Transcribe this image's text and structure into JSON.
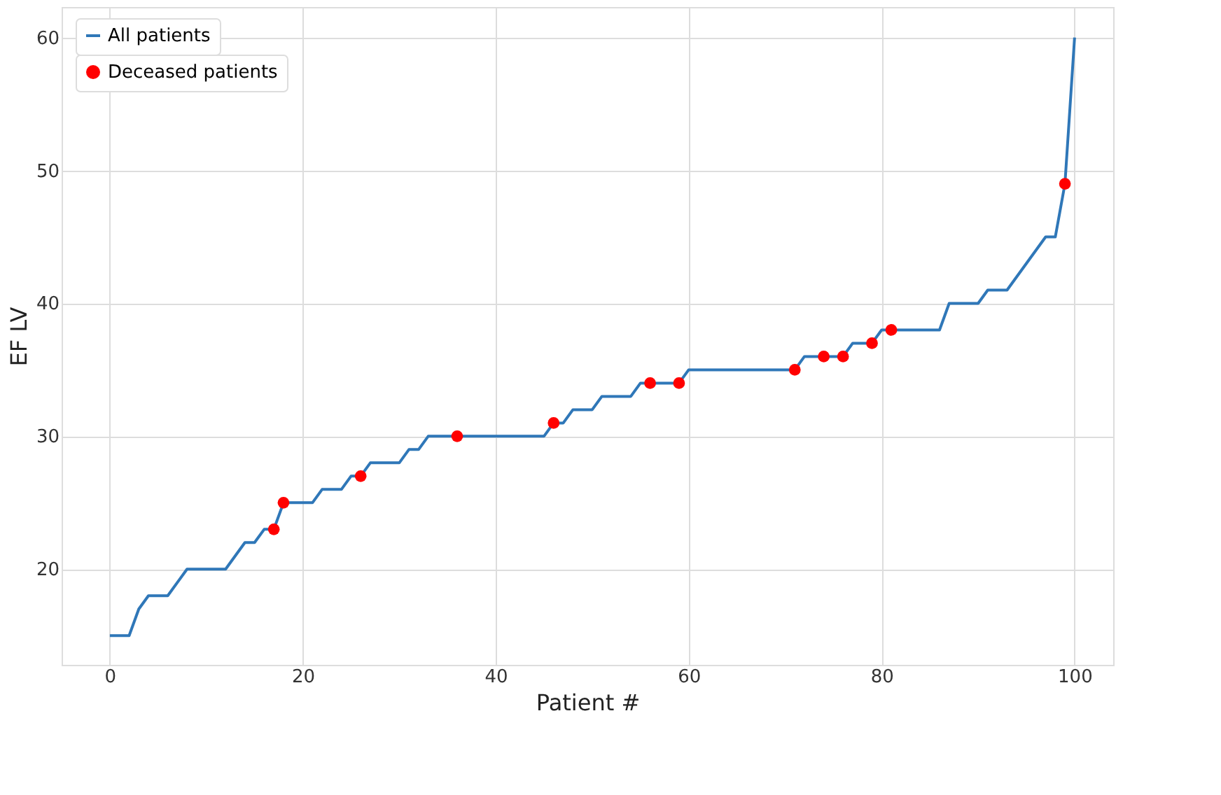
{
  "chart_data": {
    "type": "line",
    "xlabel": "Patient #",
    "ylabel": "EF LV",
    "xlim": [
      -5,
      104
    ],
    "ylim": [
      12.8,
      62.3
    ],
    "xticks": [
      0,
      20,
      40,
      60,
      80,
      100
    ],
    "yticks": [
      20,
      30,
      40,
      50,
      60
    ],
    "grid": true,
    "legend": "top left",
    "series": [
      {
        "name": "All patients",
        "color": "#2f77b8",
        "marker": "none",
        "x": [
          0,
          2,
          3,
          4,
          6,
          8,
          12,
          14,
          15,
          16,
          17,
          18,
          21,
          22,
          24,
          25,
          26,
          27,
          30,
          31,
          32,
          33,
          45,
          46,
          47,
          48,
          50,
          51,
          54,
          55,
          59,
          60,
          71,
          72,
          76,
          77,
          79,
          80,
          86,
          87,
          90,
          91,
          93,
          97,
          98,
          99,
          100
        ],
        "values": [
          15,
          15,
          17,
          18,
          18,
          20,
          20,
          22,
          22,
          23,
          23,
          25,
          25,
          26,
          26,
          27,
          27,
          28,
          28,
          29,
          29,
          30,
          30,
          31,
          31,
          32,
          32,
          33,
          33,
          34,
          34,
          35,
          35,
          36,
          36,
          37,
          37,
          38,
          38,
          40,
          40,
          41,
          41,
          45,
          45,
          49,
          60
        ]
      },
      {
        "name": "Deceased patients",
        "type": "scatter",
        "color": "#ff0000",
        "marker": "circle",
        "x": [
          17,
          18,
          26,
          36,
          46,
          56,
          59,
          71,
          74,
          76,
          79,
          81,
          99
        ],
        "values": [
          23,
          25,
          27,
          30,
          31,
          34,
          34,
          35,
          36,
          36,
          37,
          38,
          49
        ]
      }
    ]
  }
}
